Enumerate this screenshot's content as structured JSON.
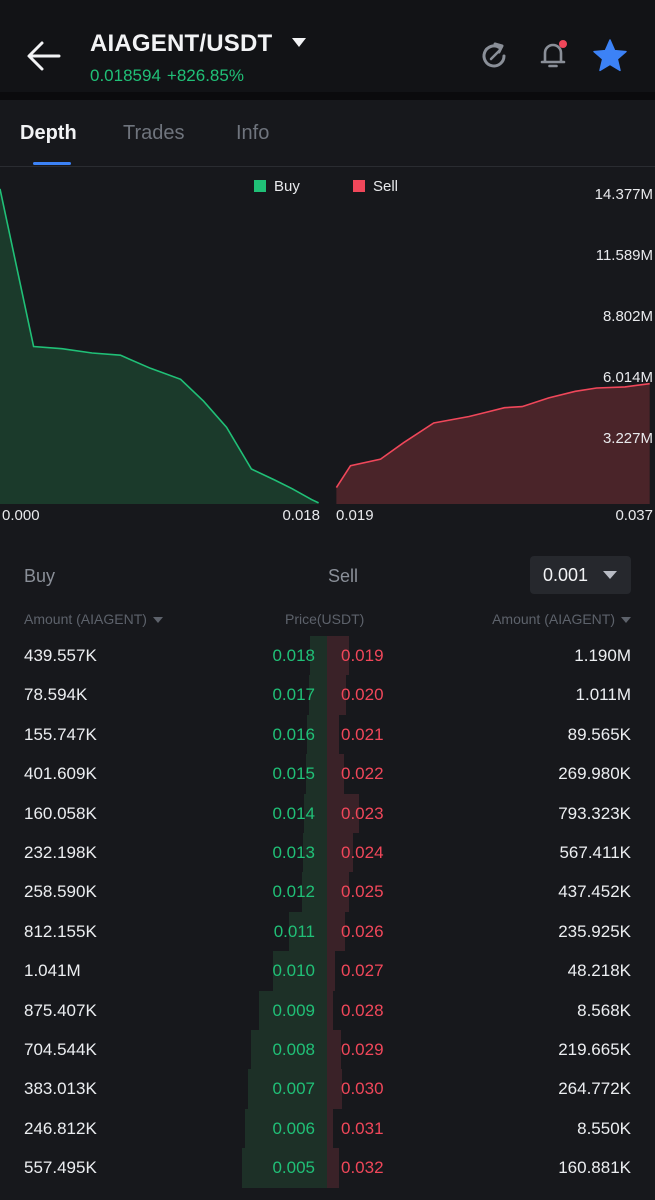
{
  "header": {
    "pair": "AIAGENT/USDT",
    "last_price": "0.018594",
    "change": "+826.85%",
    "price_color": "#20c077",
    "icons": [
      "back-arrow-icon",
      "refresh-icon",
      "bell-icon",
      "star-icon"
    ],
    "favorite_color": "#3c82f6",
    "notification_dot_color": "#f0475a"
  },
  "tabs": [
    {
      "label": "Depth",
      "active": true
    },
    {
      "label": "Trades",
      "active": false
    },
    {
      "label": "Info",
      "active": false
    }
  ],
  "chart_data": {
    "type": "area",
    "legend": [
      {
        "name": "Buy",
        "color": "#20c077"
      },
      {
        "name": "Sell",
        "color": "#f0475a"
      }
    ],
    "legend_position": "top-center",
    "y_ticks": [
      "14.377M",
      "11.589M",
      "8.802M",
      "6.014M",
      "3.227M"
    ],
    "x_ticks": [
      "0.000",
      "0.018",
      "0.019",
      "0.037"
    ],
    "ylim": [
      0,
      14.9
    ],
    "series": [
      {
        "name": "Buy",
        "x": [
          0.0,
          0.0019,
          0.0035,
          0.0052,
          0.0068,
          0.0085,
          0.0102,
          0.0115,
          0.0128,
          0.0142,
          0.0155,
          0.0165,
          0.0176,
          0.018
        ],
        "y": [
          14.4,
          7.2,
          7.1,
          6.9,
          6.8,
          6.2,
          5.7,
          4.7,
          3.5,
          1.6,
          1.1,
          0.7,
          0.2,
          0.05
        ]
      },
      {
        "name": "Sell",
        "x": [
          0.019,
          0.0198,
          0.0215,
          0.0228,
          0.0245,
          0.0265,
          0.0275,
          0.0285,
          0.0295,
          0.031,
          0.0325,
          0.0337,
          0.0353,
          0.0367
        ],
        "y": [
          0.75,
          1.75,
          2.05,
          2.8,
          3.7,
          4.0,
          4.2,
          4.4,
          4.45,
          4.85,
          5.15,
          5.3,
          5.35,
          5.5
        ]
      }
    ]
  },
  "orderbook": {
    "buy_label": "Buy",
    "sell_label": "Sell",
    "precision": "0.001",
    "col_amount_buy": "Amount (AIAGENT)",
    "col_price": "Price(USDT)",
    "col_amount_sell": "Amount (AIAGENT)",
    "rows": [
      {
        "buy_amount": "439.557K",
        "buy_price": "0.018",
        "sell_price": "0.019",
        "sell_amount": "1.190M",
        "buy_depth": 0.09,
        "sell_depth": 0.22
      },
      {
        "buy_amount": "78.594K",
        "buy_price": "0.017",
        "sell_price": "0.020",
        "sell_amount": "1.011M",
        "buy_depth": 0.1,
        "sell_depth": 0.19
      },
      {
        "buy_amount": "155.747K",
        "buy_price": "0.016",
        "sell_price": "0.021",
        "sell_amount": "89.565K",
        "buy_depth": 0.12,
        "sell_depth": 0.1
      },
      {
        "buy_amount": "401.609K",
        "buy_price": "0.015",
        "sell_price": "0.022",
        "sell_amount": "269.980K",
        "buy_depth": 0.14,
        "sell_depth": 0.16
      },
      {
        "buy_amount": "160.058K",
        "buy_price": "0.014",
        "sell_price": "0.023",
        "sell_amount": "793.323K",
        "buy_depth": 0.16,
        "sell_depth": 0.35
      },
      {
        "buy_amount": "232.198K",
        "buy_price": "0.013",
        "sell_price": "0.024",
        "sell_amount": "567.411K",
        "buy_depth": 0.17,
        "sell_depth": 0.27
      },
      {
        "buy_amount": "258.590K",
        "buy_price": "0.012",
        "sell_price": "0.025",
        "sell_amount": "437.452K",
        "buy_depth": 0.19,
        "sell_depth": 0.23
      },
      {
        "buy_amount": "812.155K",
        "buy_price": "0.011",
        "sell_price": "0.026",
        "sell_amount": "235.925K",
        "buy_depth": 0.35,
        "sell_depth": 0.17
      },
      {
        "buy_amount": "1.041M",
        "buy_price": "0.010",
        "sell_price": "0.027",
        "sell_amount": "48.218K",
        "buy_depth": 0.55,
        "sell_depth": 0.05
      },
      {
        "buy_amount": "875.407K",
        "buy_price": "0.009",
        "sell_price": "0.028",
        "sell_amount": "8.568K",
        "buy_depth": 0.72,
        "sell_depth": 0.03
      },
      {
        "buy_amount": "704.544K",
        "buy_price": "0.008",
        "sell_price": "0.029",
        "sell_amount": "219.665K",
        "buy_depth": 0.82,
        "sell_depth": 0.12
      },
      {
        "buy_amount": "383.013K",
        "buy_price": "0.007",
        "sell_price": "0.030",
        "sell_amount": "264.772K",
        "buy_depth": 0.86,
        "sell_depth": 0.14
      },
      {
        "buy_amount": "246.812K",
        "buy_price": "0.006",
        "sell_price": "0.031",
        "sell_amount": "8.550K",
        "buy_depth": 0.9,
        "sell_depth": 0.03
      },
      {
        "buy_amount": "557.495K",
        "buy_price": "0.005",
        "sell_price": "0.032",
        "sell_amount": "160.881K",
        "buy_depth": 0.94,
        "sell_depth": 0.1
      }
    ]
  }
}
